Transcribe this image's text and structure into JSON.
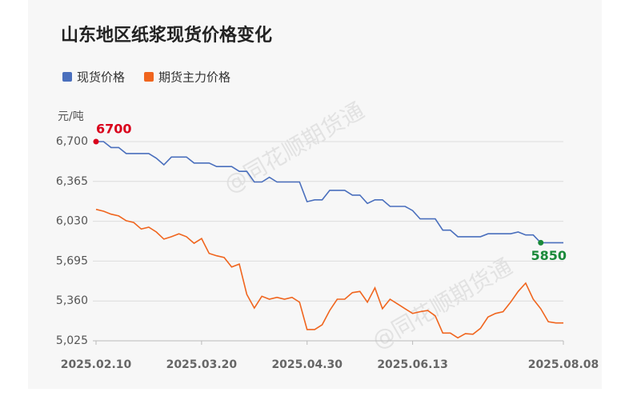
{
  "chart_data": {
    "type": "line",
    "title": "山东地区纸浆现货价格变化",
    "y_label": "元/吨",
    "watermark": "@同花顺期货通",
    "categories": [
      "2025.02.10",
      null,
      null,
      null,
      null,
      null,
      null,
      null,
      null,
      null,
      null,
      null,
      null,
      null,
      "2025.03.20",
      null,
      null,
      null,
      null,
      null,
      null,
      null,
      null,
      null,
      null,
      null,
      null,
      null,
      "2025.04.30",
      null,
      null,
      null,
      null,
      null,
      null,
      null,
      null,
      null,
      null,
      null,
      null,
      null,
      "2025.06.13",
      null,
      null,
      null,
      null,
      null,
      null,
      null,
      null,
      null,
      null,
      null,
      null,
      null,
      null,
      null,
      null,
      null,
      null,
      null,
      "2025.08.08"
    ],
    "series": [
      {
        "name": "现货价格",
        "color": "#4a6fbd",
        "values": [
          6700,
          6700,
          6650,
          6650,
          6600,
          6600,
          6600,
          6600,
          6560,
          6505,
          6570,
          6570,
          6570,
          6520,
          6520,
          6520,
          6490,
          6490,
          6490,
          6450,
          6450,
          6360,
          6360,
          6400,
          6360,
          6360,
          6360,
          6360,
          6195,
          6210,
          6210,
          6290,
          6290,
          6290,
          6250,
          6250,
          6180,
          6210,
          6210,
          6155,
          6155,
          6155,
          6120,
          6050,
          6050,
          6050,
          5955,
          5955,
          5900,
          5900,
          5900,
          5900,
          5925,
          5925,
          5925,
          5925,
          5940,
          5915,
          5915,
          5850,
          5850,
          5850,
          5850
        ]
      },
      {
        "name": "期货主力价格",
        "color": "#f0651e",
        "values": [
          6130,
          6115,
          6090,
          6075,
          6035,
          6020,
          5965,
          5980,
          5940,
          5880,
          5900,
          5925,
          5900,
          5845,
          5885,
          5760,
          5740,
          5725,
          5645,
          5670,
          5415,
          5300,
          5400,
          5375,
          5390,
          5375,
          5390,
          5350,
          5120,
          5120,
          5160,
          5280,
          5375,
          5375,
          5430,
          5440,
          5350,
          5470,
          5295,
          5375,
          5335,
          5295,
          5255,
          5270,
          5280,
          5235,
          5090,
          5090,
          5050,
          5085,
          5080,
          5130,
          5225,
          5255,
          5270,
          5350,
          5440,
          5510,
          5375,
          5295,
          5185,
          5175,
          5175
        ]
      }
    ],
    "extreme_labels": {
      "max_color": "#d9001b",
      "min_color": "#1a8a3a"
    },
    "ylim": [
      5025,
      6700
    ],
    "yticks": [
      {
        "value": 5025,
        "label": "5,025"
      },
      {
        "value": 5360,
        "label": "5,360"
      },
      {
        "value": 5695,
        "label": "5,695"
      },
      {
        "value": 6030,
        "label": "6,030"
      },
      {
        "value": 6365,
        "label": "6,365"
      },
      {
        "value": 6700,
        "label": "6,700"
      }
    ],
    "grid": true
  }
}
